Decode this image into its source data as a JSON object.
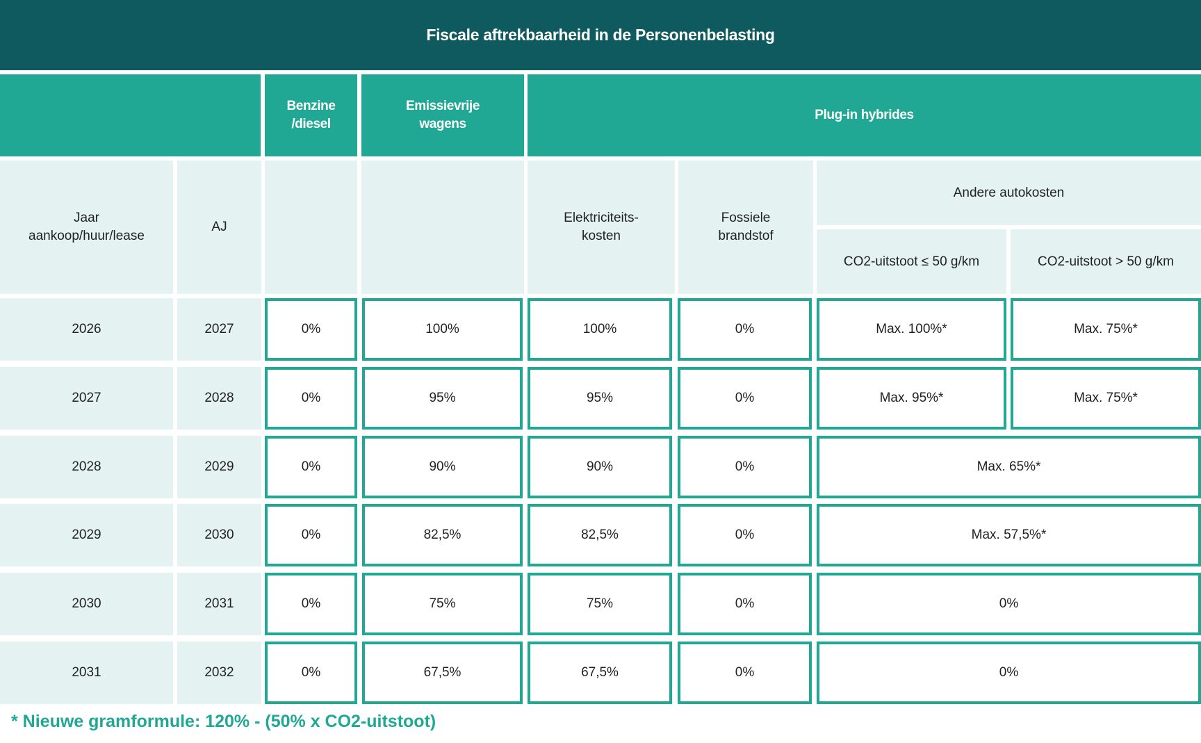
{
  "title": "Fiscale aftrekbaarheid in de Personenbelasting",
  "groups": {
    "benzine": "Benzine\n/diesel",
    "emissievrij": "Emissievrije\nwagens",
    "plugin": "Plug-in hybrides"
  },
  "subheaders": {
    "jaar": "Jaar\naankoop/huur/lease",
    "aj": "AJ",
    "elektriciteit": "Elektriciteits-\nkosten",
    "fossiel": "Fossiele\nbrandstof",
    "andere": "Andere autokosten",
    "co2_low": "CO2-uitstoot ≤ 50 g/km",
    "co2_high": "CO2-uitstoot > 50 g/km"
  },
  "rows": [
    {
      "jaar": "2026",
      "aj": "2027",
      "benzine": "0%",
      "emissievrij": "100%",
      "elektriciteit": "100%",
      "fossiel": "0%",
      "co2_low": "Max. 100%*",
      "co2_high": "Max. 75%*"
    },
    {
      "jaar": "2027",
      "aj": "2028",
      "benzine": "0%",
      "emissievrij": "95%",
      "elektriciteit": "95%",
      "fossiel": "0%",
      "co2_low": "Max. 95%*",
      "co2_high": "Max. 75%*"
    },
    {
      "jaar": "2028",
      "aj": "2029",
      "benzine": "0%",
      "emissievrij": "90%",
      "elektriciteit": "90%",
      "fossiel": "0%",
      "andere": "Max. 65%*"
    },
    {
      "jaar": "2029",
      "aj": "2030",
      "benzine": "0%",
      "emissievrij": "82,5%",
      "elektriciteit": "82,5%",
      "fossiel": "0%",
      "andere": "Max. 57,5%*"
    },
    {
      "jaar": "2030",
      "aj": "2031",
      "benzine": "0%",
      "emissievrij": "75%",
      "elektriciteit": "75%",
      "fossiel": "0%",
      "andere": "0%"
    },
    {
      "jaar": "2031",
      "aj": "2032",
      "benzine": "0%",
      "emissievrij": "67,5%",
      "elektriciteit": "67,5%",
      "fossiel": "0%",
      "andere": "0%"
    }
  ],
  "footnote": "* Nieuwe gramformule: 120% - (50% x CO2-uitstoot)",
  "colors": {
    "dark": "#0f5a5e",
    "accent": "#21a895",
    "light": "#e4f3f1"
  }
}
